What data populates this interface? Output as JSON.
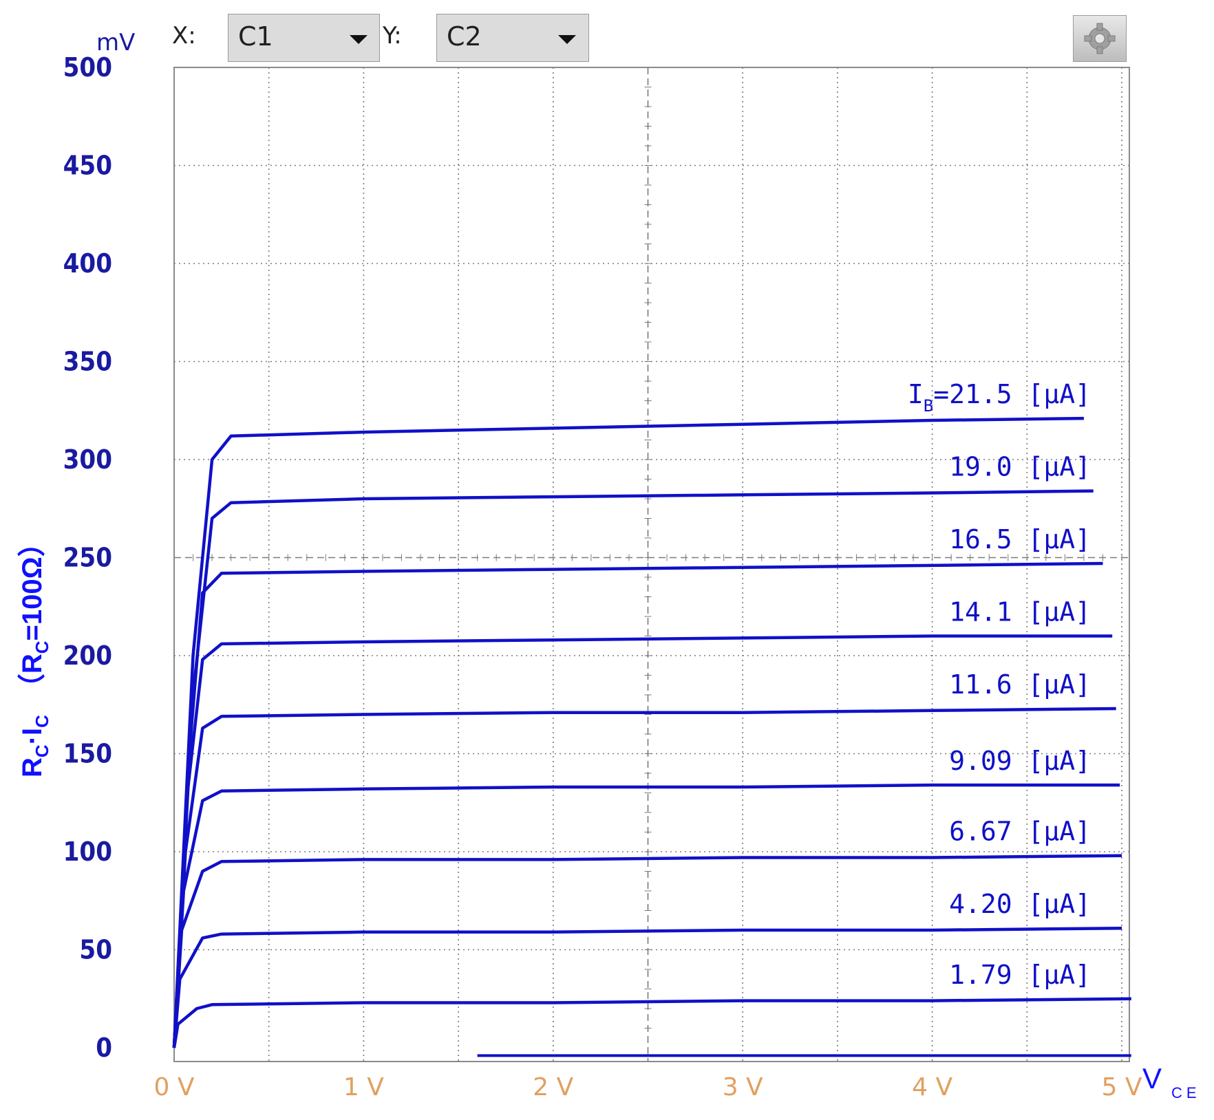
{
  "toolbar": {
    "unit": "mV",
    "x_label": "X:",
    "x_select": "C1",
    "y_label": "Y:",
    "y_select": "C2",
    "settings_icon": "gear-icon"
  },
  "colors": {
    "trace": "#1010c8",
    "y_tick": "#1a1aa0",
    "x_tick": "#e0a060",
    "grid": "#7a7a7a",
    "axis_label": "#1010ff"
  },
  "chart_data": {
    "type": "line",
    "xlabel": "V",
    "xlabel_sub": "CE",
    "ylabel_parts": [
      "R",
      "C",
      "·I",
      "C",
      "（R",
      "C",
      "=100Ω）"
    ],
    "xlim": [
      0,
      5
    ],
    "ylim": [
      0,
      500
    ],
    "x_ticks": [
      "0 V",
      "1 V",
      "2 V",
      "3 V",
      "4 V",
      "5 V"
    ],
    "y_ticks": [
      "0",
      "50",
      "100",
      "150",
      "200",
      "250",
      "300",
      "350",
      "400",
      "450",
      "500"
    ],
    "grid": true,
    "series": [
      {
        "name": "I_B=21.5 [μA]",
        "label_prefix": "I",
        "label_sub": "B",
        "label": "=21.5 [μA]",
        "x": [
          0,
          0.1,
          0.2,
          0.3,
          1,
          2,
          3,
          4,
          4.8
        ],
        "y": [
          0,
          200,
          300,
          312,
          314,
          316,
          318,
          320,
          321
        ]
      },
      {
        "name": "19.0 [μA]",
        "label": "19.0 [μA]",
        "x": [
          0,
          0.1,
          0.2,
          0.3,
          1,
          2,
          3,
          4,
          4.85
        ],
        "y": [
          0,
          180,
          270,
          278,
          280,
          281,
          282,
          283,
          284
        ]
      },
      {
        "name": "16.5 [μA]",
        "label": "16.5 [μA]",
        "x": [
          0,
          0.08,
          0.15,
          0.25,
          1,
          2,
          3,
          4,
          4.9
        ],
        "y": [
          0,
          150,
          232,
          242,
          243,
          244,
          245,
          246,
          247
        ]
      },
      {
        "name": "14.1 [μA]",
        "label": "14.1 [μA]",
        "x": [
          0,
          0.07,
          0.15,
          0.25,
          1,
          2,
          3,
          4,
          4.95
        ],
        "y": [
          0,
          130,
          198,
          206,
          207,
          208,
          209,
          210,
          210
        ]
      },
      {
        "name": "11.6 [μA]",
        "label": "11.6 [μA]",
        "x": [
          0,
          0.06,
          0.15,
          0.25,
          1,
          2,
          3,
          4,
          4.97
        ],
        "y": [
          0,
          100,
          163,
          169,
          170,
          171,
          171,
          172,
          173
        ]
      },
      {
        "name": "9.09 [μA]",
        "label": "9.09 [μA]",
        "x": [
          0,
          0.05,
          0.15,
          0.25,
          1,
          2,
          3,
          4,
          4.99
        ],
        "y": [
          0,
          80,
          126,
          131,
          132,
          133,
          133,
          134,
          134
        ]
      },
      {
        "name": "6.67 [μA]",
        "label": "6.67 [μA]",
        "x": [
          0,
          0.04,
          0.15,
          0.25,
          1,
          2,
          3,
          4,
          5
        ],
        "y": [
          0,
          60,
          90,
          95,
          96,
          96,
          97,
          97,
          98
        ]
      },
      {
        "name": "4.20 [μA]",
        "label": "4.20 [μA]",
        "x": [
          0,
          0.03,
          0.15,
          0.25,
          1,
          2,
          3,
          4,
          5
        ],
        "y": [
          0,
          35,
          56,
          58,
          59,
          59,
          60,
          60,
          61
        ]
      },
      {
        "name": "1.79 [μA]",
        "label": "1.79 [μA]",
        "x": [
          0,
          0.02,
          0.12,
          0.2,
          1,
          2,
          3,
          4,
          5.05
        ],
        "y": [
          0,
          12,
          20,
          22,
          23,
          23,
          24,
          24,
          25
        ]
      }
    ],
    "baseline": {
      "x": [
        1.6,
        5.05
      ],
      "y": [
        -4,
        -4
      ]
    }
  }
}
